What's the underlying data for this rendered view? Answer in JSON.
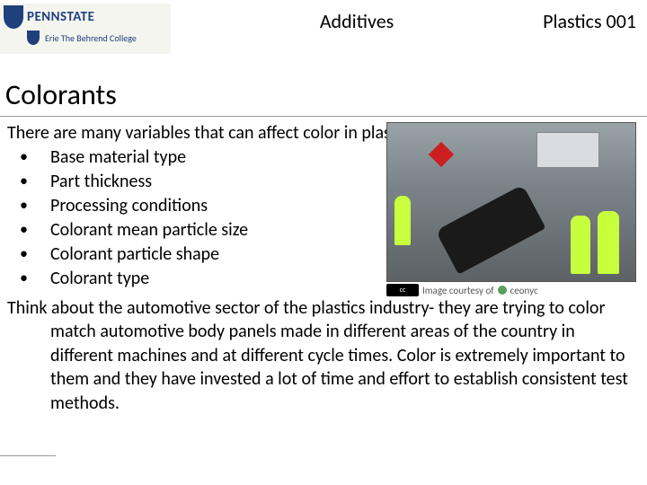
{
  "header": {
    "logo": {
      "university": "PENNSTATE",
      "campus": "Erie",
      "college": "The Behrend College"
    },
    "title": "Additives",
    "course": "Plastics 001"
  },
  "section_title": "Colorants",
  "intro": "There are many variables that can affect color in plastic parts",
  "bullets": [
    "Base material type",
    "Part thickness",
    "Processing conditions",
    "Colorant mean particle size",
    "Colorant particle shape",
    "Colorant type"
  ],
  "paragraph": "Think about the automotive sector of the plastics industry- they are trying to color match automotive body panels made in different areas of the country in different machines and at different cycle times. Color is extremely important to them and they have invested a lot of time and effort to establish consistent test methods.",
  "image": {
    "cc_badge": "cc",
    "caption_prefix": "Image courtesy of",
    "source": "ceonyc"
  },
  "colors": {
    "penn_state_blue": "#1e407c",
    "safety_vest": "#c8ff3d",
    "text": "#000000",
    "background": "#ffffff"
  }
}
